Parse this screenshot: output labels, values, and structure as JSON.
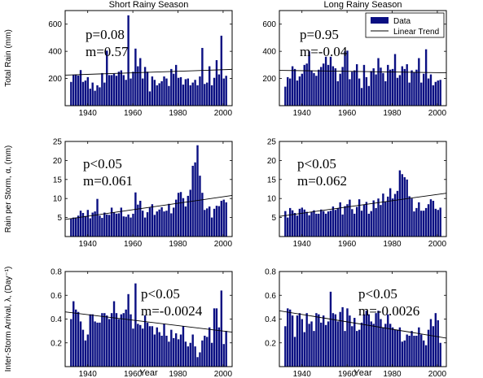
{
  "chart_data": [
    {
      "type": "bar",
      "column_title": "Short Rainy Season",
      "ylabel": "Total Rain (mm)",
      "xlabel": "",
      "xlim": [
        1930,
        2004
      ],
      "ylim": [
        0,
        700
      ],
      "xticks": [
        "1940",
        "1960",
        "1980",
        "2000"
      ],
      "yticks": [
        "200",
        "400",
        "600"
      ],
      "annotation": [
        "p=0.08",
        "m=0.57"
      ],
      "legend": null,
      "trend": [
        225,
        267
      ],
      "series": [
        {
          "name": "Data",
          "values": [
            175,
            225,
            230,
            222,
            262,
            175,
            185,
            210,
            125,
            170,
            110,
            150,
            135,
            240,
            170,
            405,
            225,
            225,
            235,
            220,
            250,
            260,
            225,
            190,
            665,
            200,
            250,
            420,
            290,
            350,
            200,
            285,
            250,
            105,
            215,
            190,
            150,
            165,
            180,
            215,
            200,
            145,
            270,
            235,
            300,
            205,
            210,
            155,
            195,
            200,
            150,
            170,
            190,
            150,
            215,
            425,
            160,
            170,
            290,
            150,
            205,
            335,
            230,
            515,
            200,
            220
          ]
        }
      ]
    },
    {
      "type": "bar",
      "column_title": "Long Rainy Season",
      "ylabel": "",
      "xlabel": "",
      "xlim": [
        1930,
        2004
      ],
      "ylim": [
        0,
        700
      ],
      "xticks": [
        "1940",
        "1960",
        "1980",
        "2000"
      ],
      "yticks": [
        "200",
        "400",
        "600"
      ],
      "annotation": [
        "p=0.95",
        "m=-0.04"
      ],
      "legend": {
        "data": "Data",
        "trend": "Linear Trend"
      },
      "trend": [
        260,
        242
      ],
      "series": [
        {
          "name": "Data",
          "values": [
            140,
            210,
            200,
            290,
            270,
            185,
            215,
            235,
            300,
            310,
            400,
            260,
            240,
            220,
            265,
            285,
            310,
            360,
            300,
            360,
            290,
            275,
            180,
            235,
            285,
            400,
            405,
            195,
            250,
            260,
            305,
            200,
            130,
            300,
            210,
            145,
            255,
            275,
            230,
            350,
            280,
            240,
            180,
            300,
            265,
            270,
            380,
            205,
            225,
            290,
            270,
            305,
            170,
            260,
            245,
            265,
            350,
            170,
            235,
            415,
            200,
            230,
            150,
            175,
            185,
            190
          ]
        }
      ]
    },
    {
      "type": "bar",
      "column_title": "",
      "ylabel": "Rain per Storm, α, (mm)",
      "xlabel": "",
      "xlim": [
        1930,
        2004
      ],
      "ylim": [
        0,
        25
      ],
      "xticks": [
        "1940",
        "1960",
        "1980",
        "2000"
      ],
      "yticks": [
        "5",
        "10",
        "15",
        "20",
        "25"
      ],
      "annotation": [
        "p<0.05",
        "m=0.061"
      ],
      "legend": null,
      "trend": [
        4.5,
        10.8
      ],
      "series": [
        {
          "name": "Data",
          "values": [
            4.7,
            5.0,
            5.0,
            5.5,
            6.8,
            6.2,
            5.4,
            7.0,
            4.8,
            6.3,
            6.6,
            9.9,
            5.5,
            4.9,
            6.3,
            5.8,
            5.7,
            7.6,
            6.4,
            6.0,
            6.1,
            7.6,
            5.3,
            5.2,
            5.8,
            5.0,
            6.0,
            11.6,
            8.4,
            9.4,
            6.8,
            5.0,
            6.4,
            7.6,
            8.5,
            5.7,
            6.6,
            7.1,
            7.7,
            6.6,
            6.8,
            8.6,
            6.1,
            7.6,
            9.7,
            11.5,
            11.7,
            10.1,
            7.9,
            10.7,
            12.3,
            18.6,
            19.5,
            24.0,
            16.0,
            11.5,
            7.0,
            7.4,
            7.9,
            5.0,
            7.3,
            8.1,
            8.0,
            9.4,
            9.7,
            9.0
          ]
        }
      ]
    },
    {
      "type": "bar",
      "column_title": "",
      "ylabel": "",
      "xlabel": "",
      "xlim": [
        1930,
        2004
      ],
      "ylim": [
        0,
        25
      ],
      "xticks": [
        "1940",
        "1960",
        "1980",
        "2000"
      ],
      "yticks": [
        "5",
        "10",
        "15",
        "20",
        "25"
      ],
      "annotation": [
        "p<0.05",
        "m=0.062"
      ],
      "legend": null,
      "trend": [
        5.3,
        11.4
      ],
      "series": [
        {
          "name": "Data",
          "values": [
            6.7,
            5.0,
            7.5,
            6.9,
            6.2,
            5.5,
            7.3,
            7.6,
            7.1,
            6.5,
            5.6,
            6.4,
            6.9,
            6.0,
            6.0,
            7.1,
            6.7,
            6.0,
            6.6,
            6.8,
            7.9,
            7.0,
            7.4,
            9.0,
            5.8,
            8.0,
            8.5,
            9.7,
            7.2,
            6.0,
            7.8,
            9.8,
            6.8,
            8.4,
            9.1,
            6.0,
            6.7,
            9.5,
            7.5,
            10.0,
            8.3,
            11.3,
            9.1,
            10.5,
            12.7,
            10.0,
            11.2,
            12.0,
            17.4,
            16.4,
            15.6,
            15.0,
            10.6,
            10.0,
            6.6,
            7.5,
            9.0,
            6.8,
            6.8,
            7.5,
            8.5,
            9.8,
            9.4,
            7.3,
            7.0,
            7.6
          ]
        }
      ]
    },
    {
      "type": "bar",
      "column_title": "",
      "ylabel": "Inter-Storm Arrival, λ, (Day⁻¹)",
      "xlabel": "Year",
      "xlim": [
        1930,
        2004
      ],
      "ylim": [
        0,
        0.8
      ],
      "xticks": [
        "1940",
        "1960",
        "1980",
        "2000"
      ],
      "yticks": [
        "0.2",
        "0.4",
        "0.6",
        "0.8"
      ],
      "annotation": [
        "p<0.05",
        "m=-0.0024"
      ],
      "legend": null,
      "trend": [
        0.46,
        0.29
      ],
      "series": [
        {
          "name": "Data",
          "values": [
            0.4,
            0.55,
            0.48,
            0.46,
            0.38,
            0.31,
            0.22,
            0.27,
            0.44,
            0.44,
            0.38,
            0.37,
            0.37,
            0.45,
            0.45,
            0.43,
            0.4,
            0.45,
            0.55,
            0.45,
            0.4,
            0.44,
            0.45,
            0.48,
            0.61,
            0.44,
            0.32,
            0.7,
            0.36,
            0.35,
            0.32,
            0.43,
            0.37,
            0.34,
            0.34,
            0.27,
            0.33,
            0.29,
            0.26,
            0.36,
            0.26,
            0.21,
            0.31,
            0.24,
            0.28,
            0.23,
            0.27,
            0.34,
            0.21,
            0.17,
            0.2,
            0.27,
            0.17,
            0.08,
            0.12,
            0.22,
            0.26,
            0.25,
            0.33,
            0.2,
            0.49,
            0.49,
            0.33,
            0.64,
            0.19,
            0.3
          ]
        }
      ]
    },
    {
      "type": "bar",
      "column_title": "",
      "ylabel": "",
      "xlabel": "Year",
      "xlim": [
        1930,
        2004
      ],
      "ylim": [
        0,
        0.8
      ],
      "xticks": [
        "1940",
        "1960",
        "1980",
        "2000"
      ],
      "yticks": [
        "0.2",
        "0.4",
        "0.6",
        "0.8"
      ],
      "annotation": [
        "p<0.05",
        "m=-0.0026"
      ],
      "legend": null,
      "trend": [
        0.47,
        0.24
      ],
      "series": [
        {
          "name": "Data",
          "values": [
            0.34,
            0.49,
            0.48,
            0.43,
            0.25,
            0.43,
            0.45,
            0.4,
            0.29,
            0.45,
            0.36,
            0.38,
            0.3,
            0.45,
            0.44,
            0.37,
            0.43,
            0.35,
            0.38,
            0.63,
            0.45,
            0.44,
            0.38,
            0.46,
            0.5,
            0.3,
            0.49,
            0.43,
            0.34,
            0.41,
            0.3,
            0.31,
            0.37,
            0.44,
            0.47,
            0.44,
            0.38,
            0.36,
            0.45,
            0.47,
            0.4,
            0.33,
            0.36,
            0.44,
            0.36,
            0.33,
            0.31,
            0.31,
            0.33,
            0.21,
            0.22,
            0.27,
            0.26,
            0.3,
            0.26,
            0.26,
            0.33,
            0.27,
            0.22,
            0.18,
            0.31,
            0.4,
            0.34,
            0.45,
            0.39,
            0.2
          ]
        }
      ]
    }
  ]
}
